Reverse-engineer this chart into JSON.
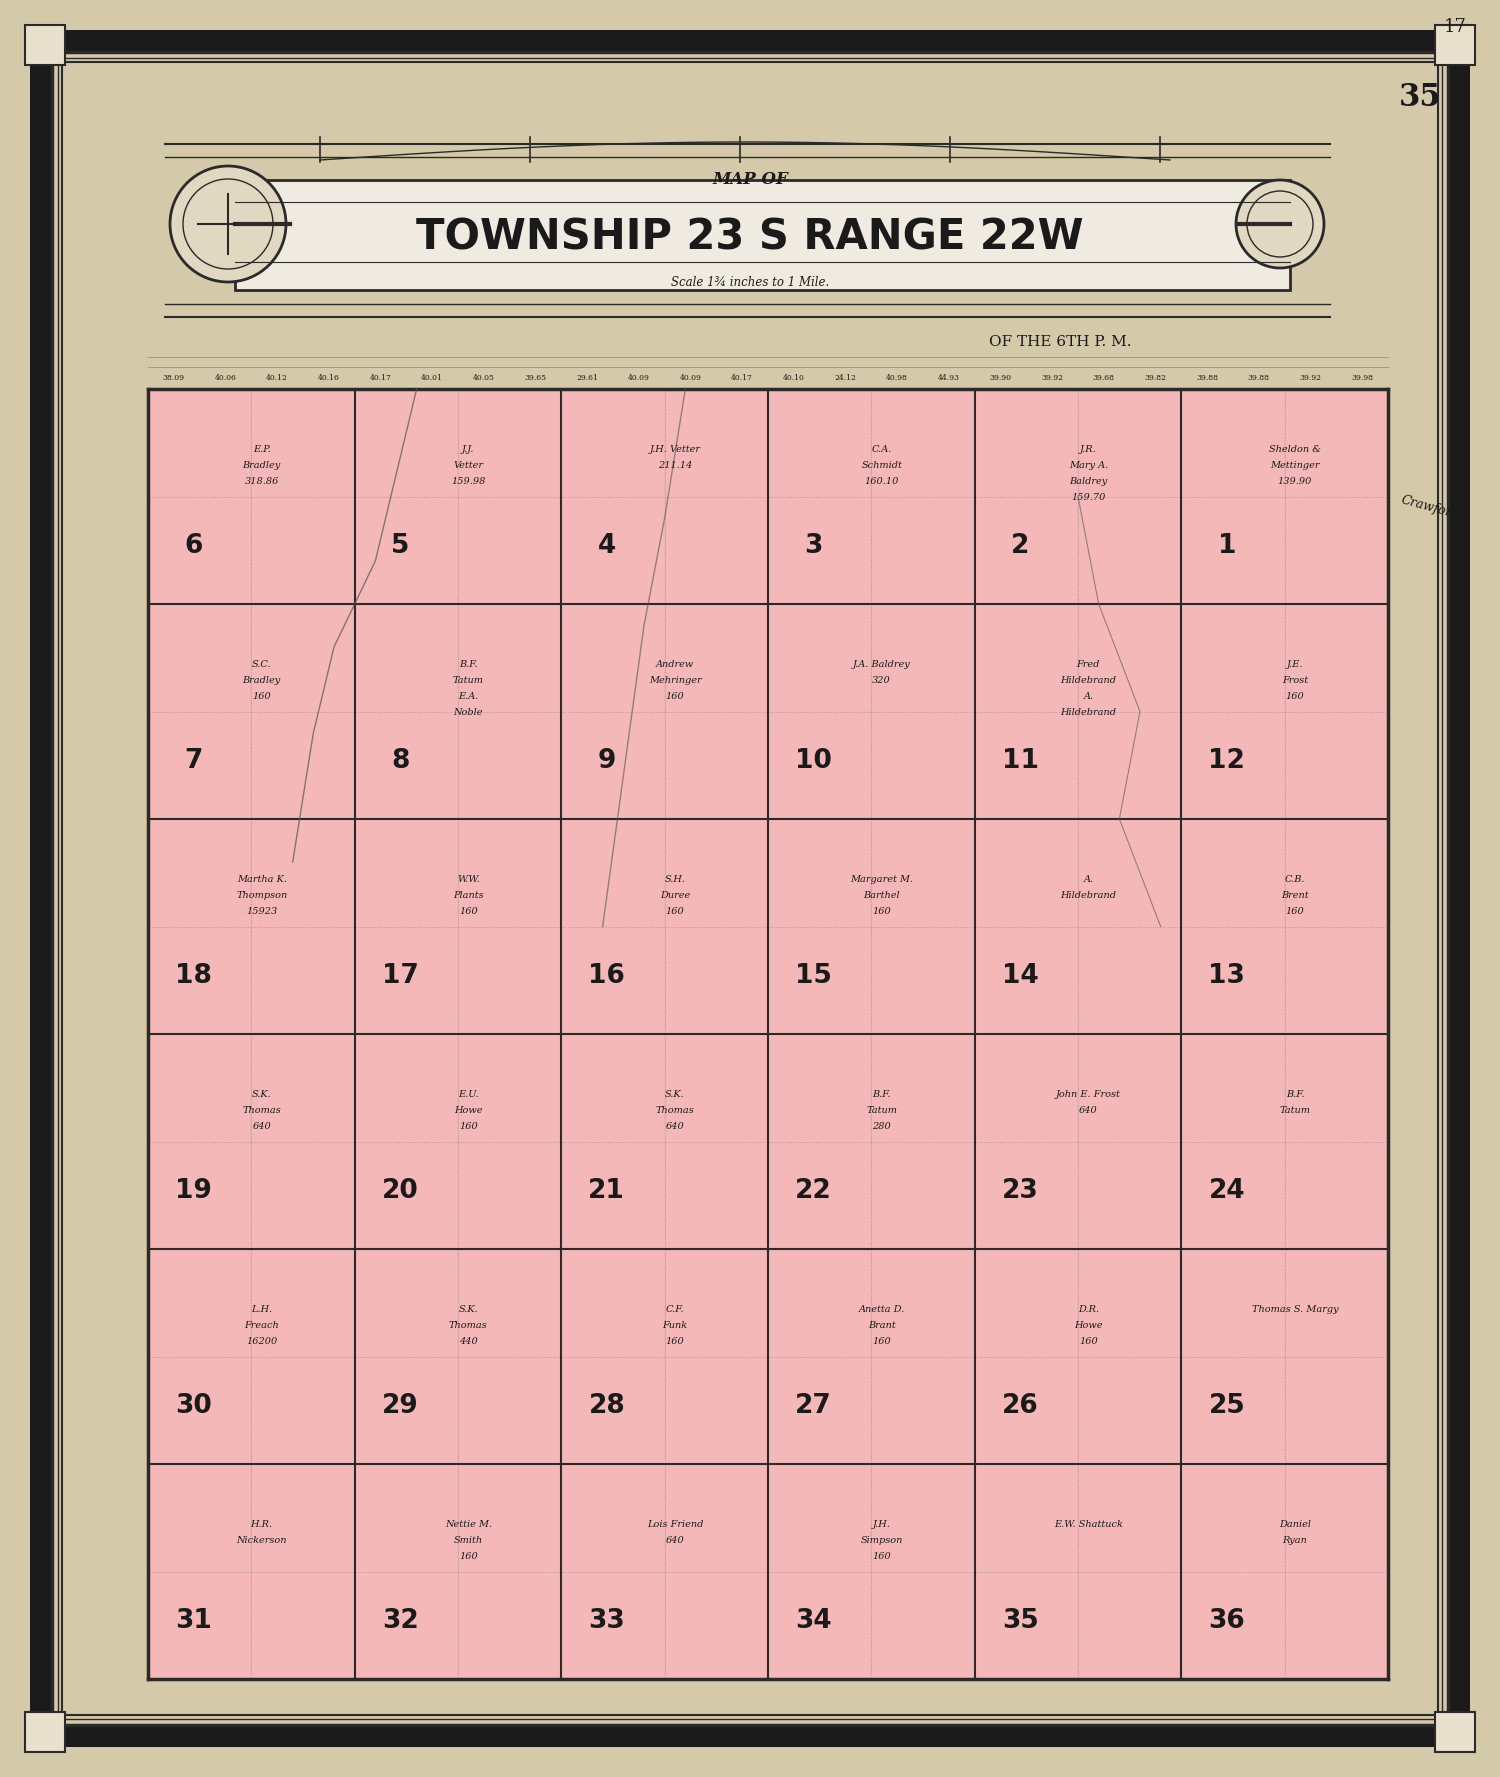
{
  "page_bg": "#d4c9a8",
  "map_bg": "#f4b8b8",
  "border_color": "#1a1a1a",
  "title_main": "TOWNSHIP 23 S RANGE 22W",
  "title_map_of": "MAP OF",
  "subtitle": "OF THE 6TH P. M.",
  "scale_text": "Scale 1¾ inches to 1 Mile.",
  "page_number": "35",
  "page_number2": "17",
  "fig_width": 15.0,
  "fig_height": 17.77,
  "sections": [
    {
      "num": "6",
      "col": 0,
      "row": 0
    },
    {
      "num": "5",
      "col": 1,
      "row": 0
    },
    {
      "num": "4",
      "col": 2,
      "row": 0
    },
    {
      "num": "3",
      "col": 3,
      "row": 0
    },
    {
      "num": "2",
      "col": 4,
      "row": 0
    },
    {
      "num": "1",
      "col": 5,
      "row": 0
    },
    {
      "num": "7",
      "col": 0,
      "row": 1
    },
    {
      "num": "8",
      "col": 1,
      "row": 1
    },
    {
      "num": "9",
      "col": 2,
      "row": 1
    },
    {
      "num": "10",
      "col": 3,
      "row": 1
    },
    {
      "num": "11",
      "col": 4,
      "row": 1
    },
    {
      "num": "12",
      "col": 5,
      "row": 1
    },
    {
      "num": "18",
      "col": 0,
      "row": 2
    },
    {
      "num": "17",
      "col": 1,
      "row": 2
    },
    {
      "num": "16",
      "col": 2,
      "row": 2
    },
    {
      "num": "15",
      "col": 3,
      "row": 2
    },
    {
      "num": "14",
      "col": 4,
      "row": 2
    },
    {
      "num": "13",
      "col": 5,
      "row": 2
    },
    {
      "num": "19",
      "col": 0,
      "row": 3
    },
    {
      "num": "20",
      "col": 1,
      "row": 3
    },
    {
      "num": "21",
      "col": 2,
      "row": 3
    },
    {
      "num": "22",
      "col": 3,
      "row": 3
    },
    {
      "num": "23",
      "col": 4,
      "row": 3
    },
    {
      "num": "24",
      "col": 5,
      "row": 3
    },
    {
      "num": "30",
      "col": 0,
      "row": 4
    },
    {
      "num": "29",
      "col": 1,
      "row": 4
    },
    {
      "num": "28",
      "col": 2,
      "row": 4
    },
    {
      "num": "27",
      "col": 3,
      "row": 4
    },
    {
      "num": "26",
      "col": 4,
      "row": 4
    },
    {
      "num": "25",
      "col": 5,
      "row": 4
    },
    {
      "num": "31",
      "col": 0,
      "row": 5
    },
    {
      "num": "32",
      "col": 1,
      "row": 5
    },
    {
      "num": "33",
      "col": 2,
      "row": 5
    },
    {
      "num": "34",
      "col": 3,
      "row": 5
    },
    {
      "num": "35",
      "col": 4,
      "row": 5
    },
    {
      "num": "36",
      "col": 5,
      "row": 5
    }
  ],
  "section_labels": {
    "6": [
      "E.P.",
      "Bradley",
      "318.86"
    ],
    "5": [
      "J.J.",
      "Vetter",
      "159.98"
    ],
    "4": [
      "J.H. Vetter",
      "211.14"
    ],
    "3": [
      "C.A.",
      "Schmidt",
      "160.10"
    ],
    "2": [
      "J.R.",
      "Mary A.",
      "Baldrey",
      "159.70"
    ],
    "1": [
      "Sheldon &",
      "Mettinger",
      "139.90"
    ],
    "7": [
      "S.C.",
      "Bradley",
      "160"
    ],
    "8": [
      "B.F.",
      "Tatum",
      "E.A.",
      "Noble"
    ],
    "9": [
      "Andrew",
      "Mehringer",
      "160"
    ],
    "10": [
      "J.A. Baldrey",
      "320"
    ],
    "11": [
      "Fred",
      "Hildebrand",
      "A.",
      "Hildebrand"
    ],
    "12": [
      "J.E.",
      "Frost",
      "160"
    ],
    "18": [
      "Martha K.",
      "Thompson",
      "15923"
    ],
    "17": [
      "W.W.",
      "Plants",
      "160"
    ],
    "16": [
      "S.H.",
      "Duree",
      "160"
    ],
    "15": [
      "Margaret M.",
      "Barthel",
      "160"
    ],
    "14": [
      "A.",
      "Hildebrand"
    ],
    "13": [
      "C.B.",
      "Brent",
      "160"
    ],
    "19": [
      "S.K.",
      "Thomas",
      "640"
    ],
    "20": [
      "E.U.",
      "Howe",
      "160"
    ],
    "21": [
      "S.K.",
      "Thomas",
      "640"
    ],
    "22": [
      "B.F.",
      "Tatum",
      "280"
    ],
    "23": [
      "John E. Frost",
      "640"
    ],
    "24": [
      "B.F.",
      "Tatum"
    ],
    "30": [
      "L.H.",
      "Freach",
      "16200"
    ],
    "29": [
      "S.K.",
      "Thomas",
      "440"
    ],
    "28": [
      "C.F.",
      "Funk",
      "160"
    ],
    "27": [
      "Anetta D.",
      "Brant",
      "160"
    ],
    "26": [
      "D.R.",
      "Howe",
      "160"
    ],
    "25": [
      "Thomas S. Margy"
    ],
    "31": [
      "H.R.",
      "Nickerson"
    ],
    "32": [
      "Nettie M.",
      "Smith",
      "160"
    ],
    "33": [
      "Lois Friend",
      "640"
    ],
    "34": [
      "J.H.",
      "Simpson",
      "160"
    ],
    "35": [
      "E.W. Shattuck"
    ],
    "36": [
      "Daniel",
      "Ryan"
    ]
  },
  "top_numbers": [
    "38.09",
    "40.06",
    "40.12",
    "40.16",
    "40.17",
    "40.01",
    "40.05",
    "39.65",
    "29.61",
    "40.09",
    "40.09",
    "40.17",
    "40.10",
    "24.12",
    "40.98",
    "44.93",
    "39.90",
    "39.92",
    "39.68",
    "39.82",
    "39.88",
    "39.88",
    "39.92",
    "39.98"
  ],
  "grid_line_color": "#2a2a2a",
  "section_num_color": "#1a1a1a",
  "text_color": "#1a1a1a"
}
